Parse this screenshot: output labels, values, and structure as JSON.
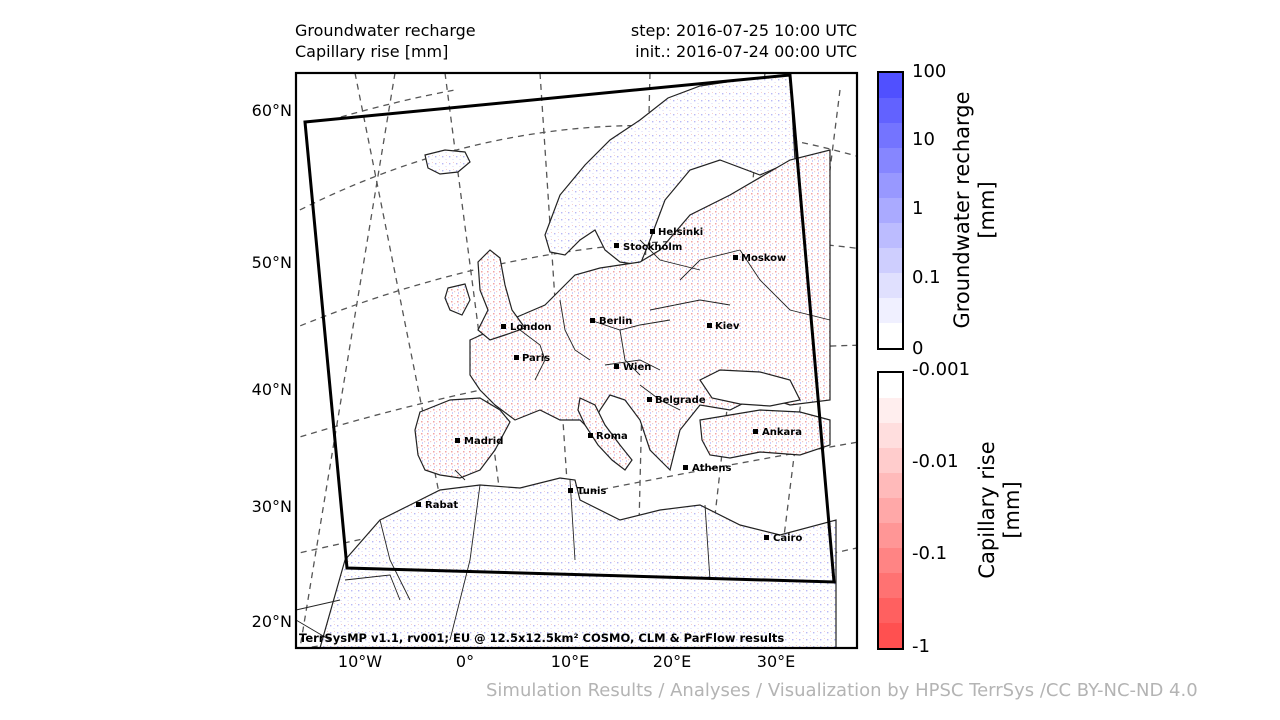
{
  "header": {
    "title_line1": "Groundwater recharge",
    "title_line2": "Capillary rise [mm]",
    "step": "step: 2016-07-25 10:00 UTC",
    "init": "init.: 2016-07-24 00:00 UTC"
  },
  "map": {
    "credit": "TerrSysMP v1.1, rv001; EU @ 12.5x12.5km² COSMO, CLM & ParFlow results",
    "lat_labels": [
      "60°N",
      "50°N",
      "40°N",
      "30°N",
      "20°N"
    ],
    "lon_labels": [
      "10°W",
      "0°",
      "10°E",
      "20°E",
      "30°E"
    ],
    "cities": [
      {
        "name": "Helsinki"
      },
      {
        "name": "Stockholm"
      },
      {
        "name": "Moskow"
      },
      {
        "name": "London"
      },
      {
        "name": "Berlin"
      },
      {
        "name": "Kiev"
      },
      {
        "name": "Paris"
      },
      {
        "name": "Wien"
      },
      {
        "name": "Belgrade"
      },
      {
        "name": "Ankara"
      },
      {
        "name": "Madrid"
      },
      {
        "name": "Roma"
      },
      {
        "name": "Athens"
      },
      {
        "name": "Tunis"
      },
      {
        "name": "Rabat"
      },
      {
        "name": "Cairo"
      }
    ]
  },
  "colorbar_recharge": {
    "label_line1": "Groundwater recharge",
    "label_line2": "[mm]",
    "ticks": [
      "100",
      "10",
      "1",
      "0.1",
      "0"
    ],
    "colors": [
      "#5050ff",
      "#6262ff",
      "#7474ff",
      "#8686ff",
      "#9898ff",
      "#aaaaff",
      "#bcbcff",
      "#cecefe",
      "#e0e0fe",
      "#f0f0ff",
      "#ffffff"
    ]
  },
  "colorbar_capillary": {
    "label_line1": "Capillary rise",
    "label_line2": "[mm]",
    "ticks": [
      "-0.001",
      "-0.01",
      "-0.1",
      "-1"
    ],
    "colors": [
      "#ffffff",
      "#ffeeee",
      "#ffdede",
      "#ffcccc",
      "#ffbaba",
      "#ffa8a8",
      "#ff9696",
      "#ff8484",
      "#ff7272",
      "#ff6060",
      "#ff5050"
    ]
  },
  "footer": "Simulation Results / Analyses / Visualization by HPSC TerrSys /CC BY-NC-ND 4.0"
}
